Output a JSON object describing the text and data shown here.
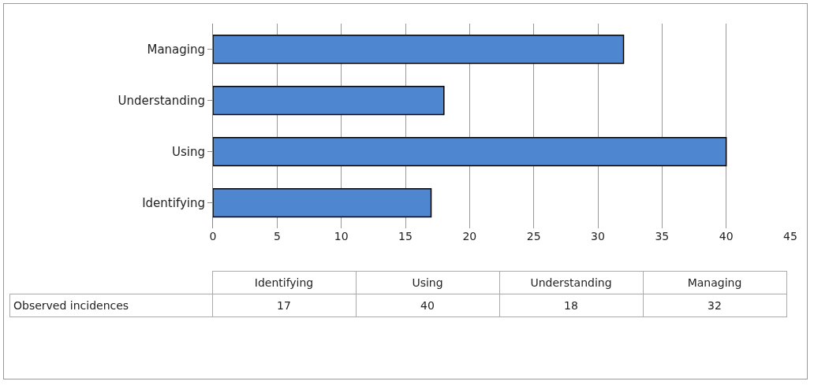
{
  "chart_data": [
    {
      "type": "bar",
      "orientation": "horizontal",
      "categories": [
        "Managing",
        "Understanding",
        "Using",
        "Identifying"
      ],
      "series": [
        {
          "color": "#4f86d0",
          "values": [
            32,
            18,
            40,
            17
          ]
        }
      ],
      "xlim": [
        0,
        45
      ],
      "xticks": [
        0,
        5,
        10,
        15,
        20,
        25,
        30,
        35,
        40,
        45
      ],
      "grid": "x"
    },
    {
      "type": "other",
      "categories": [
        "Identifying",
        "Using",
        "Understanding",
        "Managing"
      ],
      "series": [
        {
          "name": "Observed incidences",
          "values": [
            17,
            40,
            18,
            32
          ]
        }
      ],
      "data_labels": true
    }
  ]
}
